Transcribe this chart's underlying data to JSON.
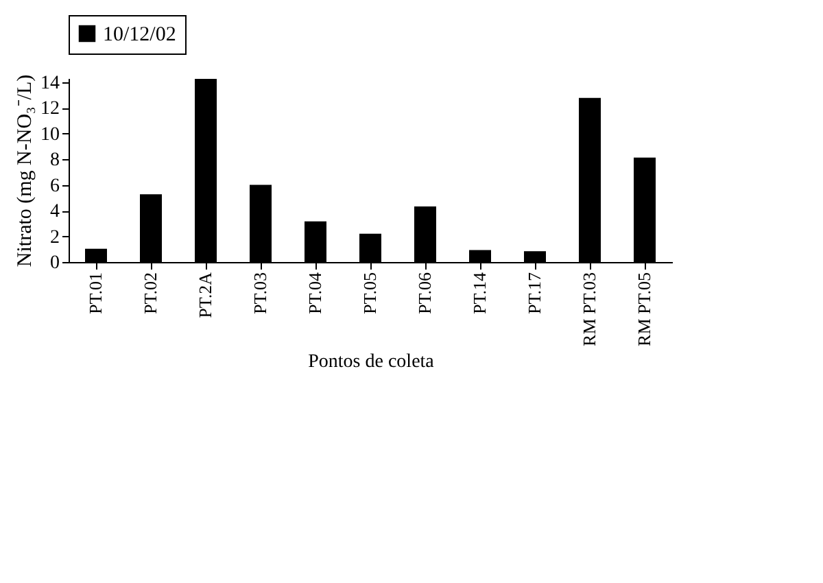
{
  "chart_data": {
    "type": "bar",
    "xlabel": "Pontos de coleta",
    "ylabel": "Nitrato (mg N-NO₃⁻/L)",
    "categories": [
      "PT.01",
      "PT.02",
      "PT.2A",
      "PT.03",
      "PT.04",
      "PT.05",
      "PT.06",
      "PT.14",
      "PT.17",
      "RM PT.03",
      "RM PT.05"
    ],
    "series": [
      {
        "name": "10/12/02",
        "color": "#000000",
        "values": [
          1.03,
          5.27,
          14.24,
          6.0,
          3.16,
          2.2,
          4.32,
          0.93,
          0.84,
          12.76,
          8.12
        ]
      }
    ],
    "ylim": [
      0,
      14.3
    ],
    "yticks": [
      0,
      2,
      4,
      6,
      8,
      10,
      12,
      14
    ],
    "grid": false,
    "legend": "top"
  }
}
